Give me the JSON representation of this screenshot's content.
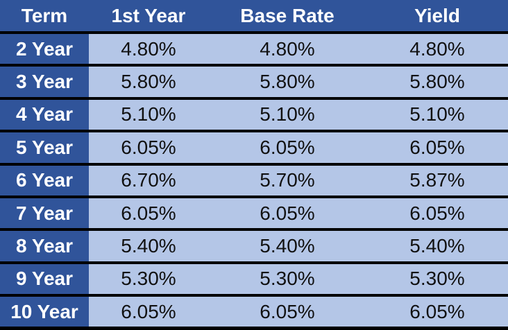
{
  "colors": {
    "header_bg": "#30549A",
    "term_column_bg": "#30549A",
    "cell_bg": "#B4C6E7",
    "grid_line": "#000000",
    "header_text": "#FFFFFF",
    "value_text": "#111111"
  },
  "table": {
    "headers": {
      "term": "Term",
      "first_year": "1st Year",
      "base_rate": "Base Rate",
      "yield": "Yield"
    },
    "rows": [
      {
        "term": "2 Year",
        "values": [
          "4.80%",
          "4.80%",
          "4.80%"
        ]
      },
      {
        "term": "3 Year",
        "values": [
          "5.80%",
          "5.80%",
          "5.80%"
        ]
      },
      {
        "term": "4 Year",
        "values": [
          "5.10%",
          "5.10%",
          "5.10%"
        ]
      },
      {
        "term": "5 Year",
        "values": [
          "6.05%",
          "6.05%",
          "6.05%"
        ]
      },
      {
        "term": "6 Year",
        "values": [
          "6.70%",
          "5.70%",
          "5.87%"
        ]
      },
      {
        "term": "7 Year",
        "values": [
          "6.05%",
          "6.05%",
          "6.05%"
        ]
      },
      {
        "term": "8 Year",
        "values": [
          "5.40%",
          "5.40%",
          "5.40%"
        ]
      },
      {
        "term": "9 Year",
        "values": [
          "5.30%",
          "5.30%",
          "5.30%"
        ]
      },
      {
        "term": "10 Year",
        "values": [
          "6.05%",
          "6.05%",
          "6.05%"
        ]
      }
    ]
  },
  "chart_data": {
    "type": "table",
    "title": "",
    "columns": [
      "Term",
      "1st Year",
      "Base Rate",
      "Yield"
    ],
    "rows": [
      [
        "2 Year",
        "4.80%",
        "4.80%",
        "4.80%"
      ],
      [
        "3 Year",
        "5.80%",
        "5.80%",
        "5.80%"
      ],
      [
        "4 Year",
        "5.10%",
        "5.10%",
        "5.10%"
      ],
      [
        "5 Year",
        "6.05%",
        "6.05%",
        "6.05%"
      ],
      [
        "6 Year",
        "6.70%",
        "5.70%",
        "5.87%"
      ],
      [
        "7 Year",
        "6.05%",
        "6.05%",
        "6.05%"
      ],
      [
        "8 Year",
        "5.40%",
        "5.40%",
        "5.40%"
      ],
      [
        "9 Year",
        "5.30%",
        "5.30%",
        "5.30%"
      ],
      [
        "10 Year",
        "6.05%",
        "6.05%",
        "6.05%"
      ]
    ]
  }
}
